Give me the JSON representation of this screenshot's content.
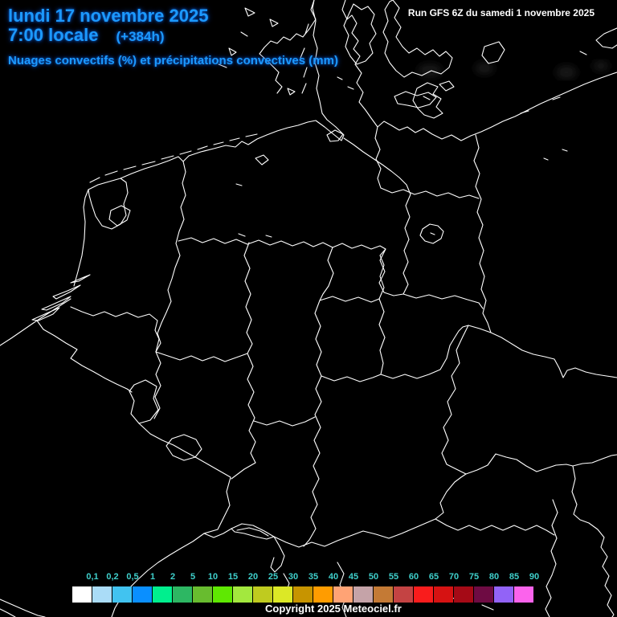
{
  "header": {
    "date_line": "lundi 17 novembre 2025",
    "time_line": "7:00 locale",
    "forecast_offset": "(+384h)",
    "subtitle": "Nuages convectifs (%) et précipitations convectives (mm)",
    "text_color": "#1C99FF"
  },
  "run_info": {
    "label": "Run GFS 6Z du samedi 1 novembre 2025",
    "text_color": "#FFFFFF"
  },
  "footer": {
    "copyright": "Copyright 2025 Meteociel.fr"
  },
  "map": {
    "background_color": "#000000",
    "border_color": "#FFFFFF",
    "description": "black weather map of Germany and neighbouring countries with white coastlines and borders"
  },
  "legend": {
    "title": "precipitation / cloud scale",
    "label_color": "#3FD0CC",
    "stops": [
      {
        "label": "0,1",
        "color": "#FFFFFF"
      },
      {
        "label": "0,2",
        "color": "#AADCF7"
      },
      {
        "label": "0,5",
        "color": "#41C3F0"
      },
      {
        "label": "1",
        "color": "#0A8FFF"
      },
      {
        "label": "2",
        "color": "#00EF8E"
      },
      {
        "label": "5",
        "color": "#2DB763"
      },
      {
        "label": "10",
        "color": "#68BC2F"
      },
      {
        "label": "15",
        "color": "#5FE802"
      },
      {
        "label": "20",
        "color": "#A3E83E"
      },
      {
        "label": "25",
        "color": "#BFCB1F"
      },
      {
        "label": "30",
        "color": "#DCE826"
      },
      {
        "label": "35",
        "color": "#C79400"
      },
      {
        "label": "40",
        "color": "#FF9C00"
      },
      {
        "label": "45",
        "color": "#FFA375"
      },
      {
        "label": "50",
        "color": "#C5A3A8"
      },
      {
        "label": "55",
        "color": "#C47A35"
      },
      {
        "label": "60",
        "color": "#C44343"
      },
      {
        "label": "65",
        "color": "#F91C1C"
      },
      {
        "label": "70",
        "color": "#D61212"
      },
      {
        "label": "75",
        "color": "#A50A16"
      },
      {
        "label": "80",
        "color": "#6E0B43"
      },
      {
        "label": "85",
        "color": "#9263F7"
      },
      {
        "label": "90",
        "color": "#FB63EC"
      }
    ]
  }
}
